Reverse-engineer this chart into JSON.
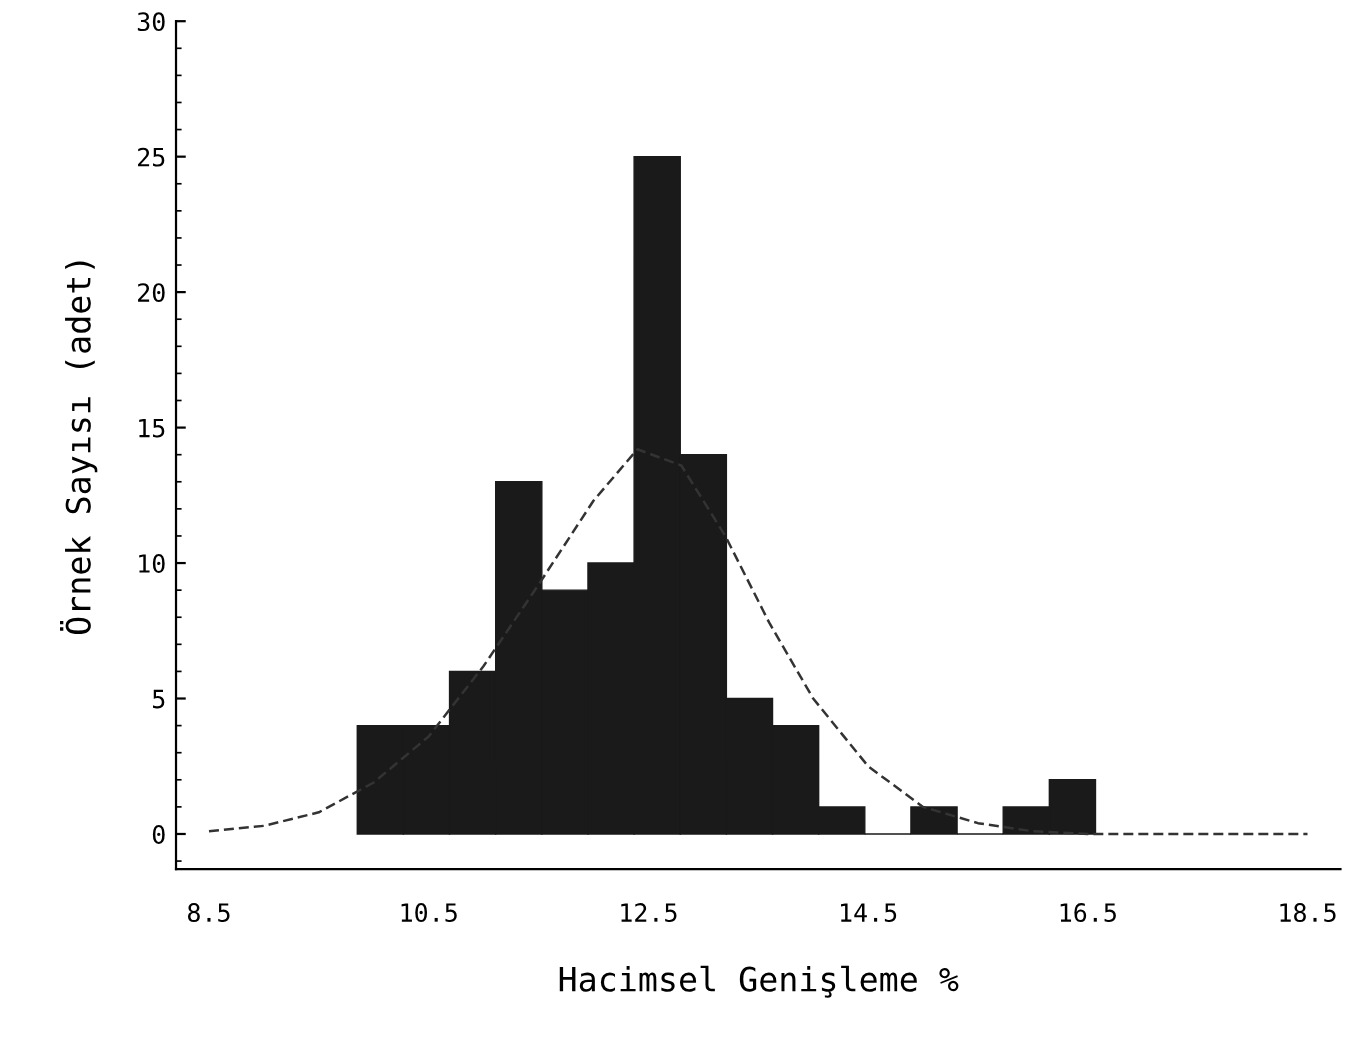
{
  "chart_data": {
    "type": "histogram",
    "xlabel": "Hacimsel Genişleme %",
    "ylabel": "Örnek Sayısı (adet)",
    "bins": [
      9.85,
      10.27,
      10.69,
      11.11,
      11.53,
      11.95,
      12.37,
      12.79,
      13.21,
      13.63,
      14.05,
      14.47,
      14.89,
      15.31,
      15.73,
      16.15,
      16.57
    ],
    "values": [
      4,
      4,
      6,
      13,
      9,
      10,
      25,
      14,
      5,
      4,
      1,
      0,
      1,
      0,
      1,
      2
    ],
    "color": "#1a1a1a",
    "series": [
      {
        "type": "line",
        "color": "#333333",
        "line_style": "dashed",
        "x": [
          8.5,
          9.0,
          9.5,
          10.0,
          10.5,
          11.0,
          11.5,
          12.0,
          12.4,
          12.8,
          13.2,
          13.6,
          14.0,
          14.5,
          15.0,
          15.5,
          16.0,
          16.5,
          17.0,
          17.5,
          18.0,
          18.5
        ],
        "values": [
          0.1,
          0.3,
          0.8,
          1.9,
          3.6,
          6.2,
          9.2,
          12.3,
          14.2,
          13.6,
          11.0,
          7.8,
          5.0,
          2.5,
          1.0,
          0.4,
          0.1,
          0,
          0,
          0,
          0,
          0
        ]
      }
    ],
    "xlim": [
      8.2,
      18.8
    ],
    "ylim": [
      -1.3,
      30
    ],
    "xticks": [
      8.5,
      10.5,
      12.5,
      14.5,
      16.5,
      18.5
    ],
    "yticks": [
      0,
      5,
      10,
      15,
      20,
      25,
      30
    ],
    "grid": false,
    "legend": false
  }
}
